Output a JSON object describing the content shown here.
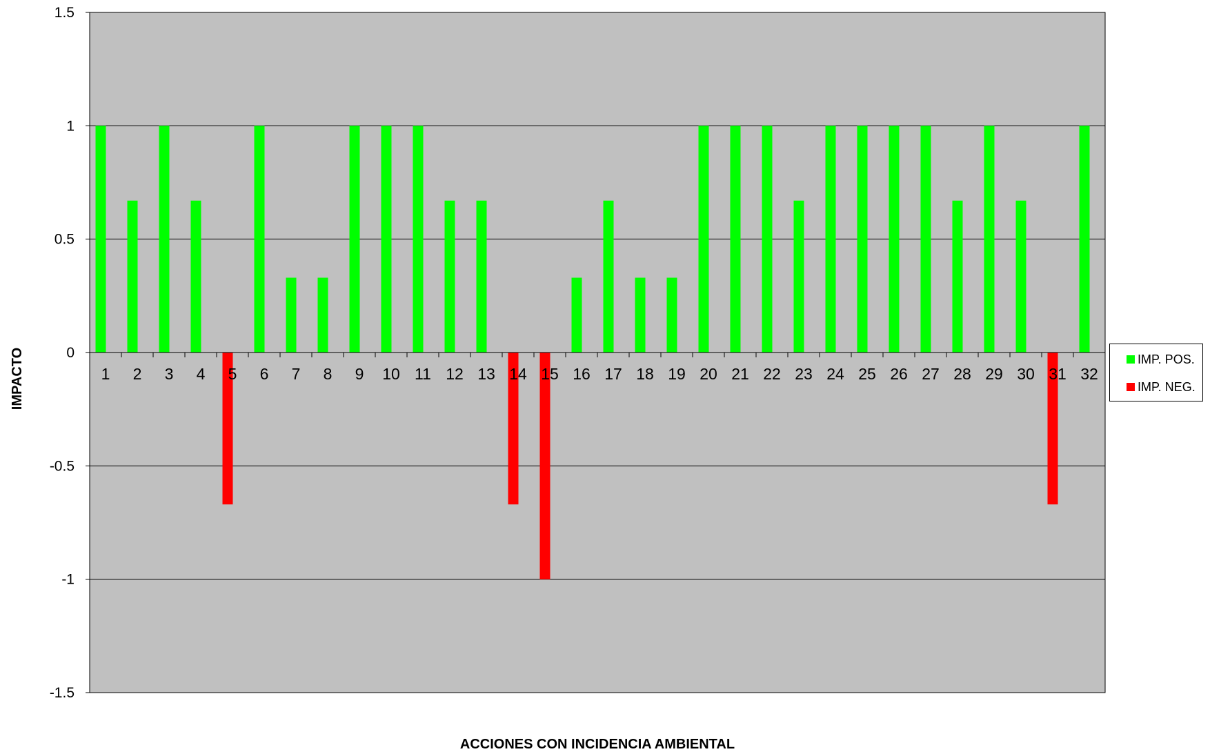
{
  "chart_data": {
    "type": "bar",
    "title": "",
    "xlabel": "ACCIONES CON INCIDENCIA AMBIENTAL",
    "ylabel": "IMPACTO",
    "ylim": [
      -1.5,
      1.5
    ],
    "yticks": [
      "1.5",
      "1",
      "0.5",
      "0",
      "-0.5",
      "-1",
      "-1.5"
    ],
    "ytick_values": [
      1.5,
      1,
      0.5,
      0,
      -0.5,
      -1,
      -1.5
    ],
    "categories": [
      "1",
      "2",
      "3",
      "4",
      "5",
      "6",
      "7",
      "8",
      "9",
      "10",
      "11",
      "12",
      "13",
      "14",
      "15",
      "16",
      "17",
      "18",
      "19",
      "20",
      "21",
      "22",
      "23",
      "24",
      "25",
      "26",
      "27",
      "28",
      "29",
      "30",
      "31",
      "32"
    ],
    "series": [
      {
        "name": "IMP. POS.",
        "color": "#00ff00",
        "values": [
          1,
          0.67,
          1,
          0.67,
          0,
          1,
          0.33,
          0.33,
          1,
          1,
          1,
          0.67,
          0.67,
          0,
          0,
          0.33,
          0.67,
          0.33,
          0.33,
          1,
          1,
          1,
          0.67,
          1,
          1,
          1,
          1,
          0.67,
          1,
          0.67,
          0,
          1
        ]
      },
      {
        "name": "IMP. NEG.",
        "color": "#ff0000",
        "values": [
          0,
          0,
          0,
          0,
          -0.67,
          0,
          0,
          0,
          0,
          0,
          0,
          0,
          0,
          -0.67,
          -1,
          0,
          0,
          0,
          0,
          0,
          0,
          0,
          0,
          0,
          0,
          0,
          0,
          0,
          0,
          0,
          -0.67,
          0
        ]
      }
    ],
    "grid": true,
    "plot_background": "#c0c0c0",
    "legend": "right"
  }
}
